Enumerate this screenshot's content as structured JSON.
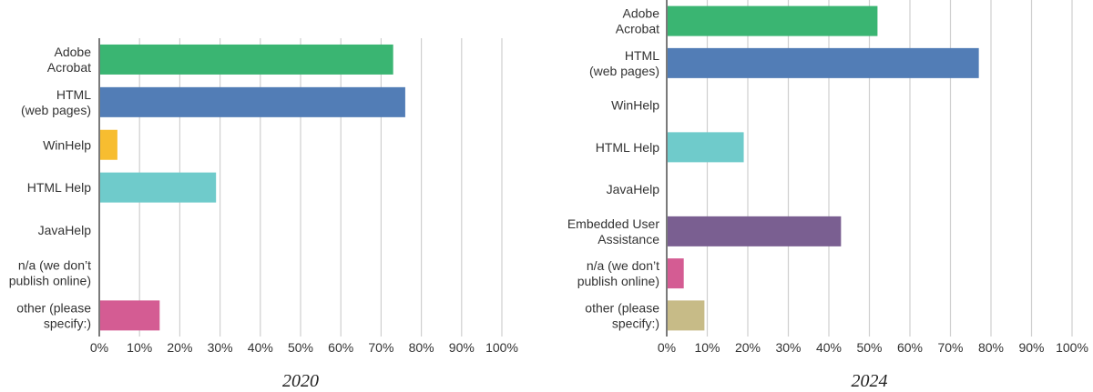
{
  "chart_data": [
    {
      "type": "bar",
      "orientation": "horizontal",
      "caption": "2020",
      "categories": [
        [
          "Adobe",
          "Acrobat"
        ],
        [
          "HTML",
          "(web pages)"
        ],
        [
          "WinHelp"
        ],
        [
          "HTML  Help"
        ],
        [
          "JavaHelp"
        ],
        [
          "n/a (we don’t",
          "publish online)"
        ],
        [
          "other (please",
          "specify:)"
        ]
      ],
      "values": [
        73,
        76,
        4.5,
        29,
        0,
        0,
        15
      ],
      "colors": [
        "#3ab572",
        "#527db6",
        "#f7bd30",
        "#6fcbcb",
        "#7a5f91",
        "#d45c93",
        "#d45c93"
      ],
      "xlim": [
        0,
        100
      ],
      "x_ticks": [
        "0%",
        "10%",
        "20%",
        "30%",
        "40%",
        "50%",
        "60%",
        "70%",
        "80%",
        "90%",
        "100%"
      ],
      "grid": "vertical"
    },
    {
      "type": "bar",
      "orientation": "horizontal",
      "caption": "2024",
      "categories": [
        [
          "Adobe",
          "Acrobat"
        ],
        [
          "HTML",
          "(web pages)"
        ],
        [
          "WinHelp"
        ],
        [
          "HTML  Help"
        ],
        [
          "JavaHelp"
        ],
        [
          "Embedded User",
          "Assistance"
        ],
        [
          "n/a (we don’t",
          "publish online)"
        ],
        [
          "other (please",
          "specify:)"
        ]
      ],
      "values": [
        52,
        77,
        0,
        19,
        0,
        43,
        4.2,
        9.3
      ],
      "colors": [
        "#3ab572",
        "#527db6",
        "#f7bd30",
        "#6fcbcb",
        "#6fcbcb",
        "#7a5f91",
        "#d45c93",
        "#c7bb87"
      ],
      "xlim": [
        0,
        100
      ],
      "x_ticks": [
        "0%",
        "10%",
        "20%",
        "30%",
        "40%",
        "50%",
        "60%",
        "70%",
        "80%",
        "90%",
        "100%"
      ],
      "grid": "vertical"
    }
  ]
}
